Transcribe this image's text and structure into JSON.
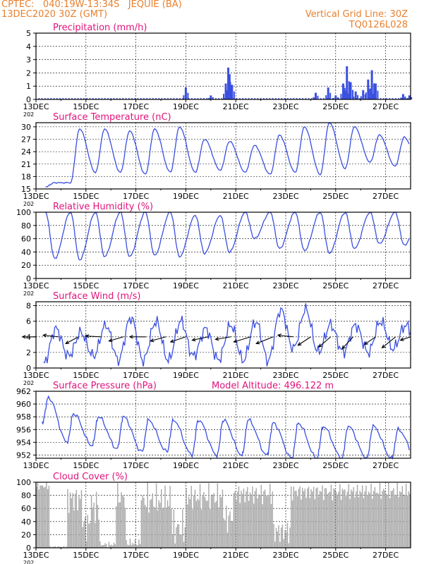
{
  "header": {
    "line1": "CPTEC:   040:19W-13:34S   JEQUIE (BA)",
    "line2": "13DEC2020 30Z (GMT)",
    "grid_note": "Vertical Grid Line: 30Z",
    "code": "TQ0126L028"
  },
  "colors": {
    "header": "#e8802e",
    "title": "#e0147c",
    "line": "#3a4fe0",
    "cloud": "#a8a8a8",
    "frame": "#000000"
  },
  "chart_data": [
    {
      "type": "bar",
      "title": "Precipitation (mm/h)",
      "x_ticks": [
        "13DEC",
        "15DEC",
        "17DEC",
        "19DEC",
        "21DEC",
        "23DEC",
        "25DEC",
        "27DEC"
      ],
      "x_start_sub": "202",
      "ylim": [
        0,
        5
      ],
      "y_ticks": [
        0,
        1,
        2,
        3,
        4,
        5
      ],
      "grid": true,
      "spikes": [
        {
          "day": 19.0,
          "v": 0.9
        },
        {
          "day": 20.0,
          "v": 0.3
        },
        {
          "day": 20.6,
          "v": 1.2
        },
        {
          "day": 20.7,
          "v": 2.4
        },
        {
          "day": 20.75,
          "v": 1.9
        },
        {
          "day": 20.85,
          "v": 1.1
        },
        {
          "day": 24.2,
          "v": 0.5
        },
        {
          "day": 24.7,
          "v": 0.9
        },
        {
          "day": 25.0,
          "v": 0.3
        },
        {
          "day": 25.3,
          "v": 1.2
        },
        {
          "day": 25.45,
          "v": 2.5
        },
        {
          "day": 25.6,
          "v": 1.3
        },
        {
          "day": 25.8,
          "v": 0.6
        },
        {
          "day": 26.1,
          "v": 0.7
        },
        {
          "day": 26.3,
          "v": 1.5
        },
        {
          "day": 26.45,
          "v": 2.2
        },
        {
          "day": 26.6,
          "v": 1.2
        },
        {
          "day": 27.7,
          "v": 0.4
        },
        {
          "day": 27.95,
          "v": 0.3
        }
      ]
    },
    {
      "type": "line",
      "title": "Surface Temperature (nC)",
      "x_ticks": [
        "13DEC",
        "15DEC",
        "17DEC",
        "19DEC",
        "21DEC",
        "23DEC",
        "25DEC",
        "27DEC"
      ],
      "x_start_sub": "202",
      "ylim": [
        15,
        31
      ],
      "y_ticks": [
        15,
        18,
        21,
        24,
        27,
        30
      ],
      "grid": true,
      "daily_max": [
        16.5,
        29.5,
        29.5,
        29,
        29.5,
        30,
        27,
        26.5,
        25.5,
        28,
        30,
        31,
        30,
        28,
        27.5,
        25,
        26.5
      ],
      "daily_min": [
        15.5,
        16.5,
        19,
        19,
        18.5,
        19,
        19,
        19.5,
        19,
        18.5,
        19,
        18.5,
        20,
        21.5,
        20.5,
        19.5,
        19.5
      ]
    },
    {
      "type": "line",
      "title": "Relative Humidity (%)",
      "x_ticks": [
        "13DEC",
        "15DEC",
        "17DEC",
        "19DEC",
        "21DEC",
        "23DEC",
        "25DEC",
        "27DEC"
      ],
      "x_start_sub": "202",
      "ylim": [
        0,
        100
      ],
      "y_ticks": [
        0,
        20,
        40,
        60,
        80,
        100
      ],
      "grid": true,
      "daily_min": [
        30,
        28,
        33,
        33,
        35,
        33,
        38,
        40,
        60,
        45,
        42,
        38,
        45,
        52,
        50,
        55,
        55
      ],
      "daily_max": [
        100,
        100,
        100,
        100,
        100,
        100,
        95,
        95,
        100,
        100,
        100,
        100,
        100,
        100,
        100,
        100,
        100
      ]
    },
    {
      "type": "line",
      "title": "Surface Wind (m/s)",
      "x_ticks": [
        "13DEC",
        "15DEC",
        "17DEC",
        "19DEC",
        "21DEC",
        "23DEC",
        "25DEC",
        "27DEC"
      ],
      "x_start_sub": "202",
      "ylim": [
        0,
        8.5
      ],
      "y_ticks": [
        0,
        2,
        4,
        6,
        8
      ],
      "grid": true,
      "daily_min": [
        0.5,
        1.5,
        1.5,
        1.0,
        1.0,
        1.0,
        1.5,
        1.0,
        1.0,
        1.0,
        2.5,
        2.0,
        2.0,
        2.0,
        2.5,
        3.0,
        3.0
      ],
      "daily_max": [
        5.0,
        4.5,
        5.5,
        6.5,
        6.0,
        6.0,
        5.0,
        5.5,
        6.0,
        7.5,
        7.5,
        5.5,
        5.5,
        6.0,
        5.5,
        5.5,
        5.0
      ],
      "arrows": [
        {
          "day": 13.0,
          "u": -1.6,
          "v": 0.0
        },
        {
          "day": 13.9,
          "u": -1.8,
          "v": 0.2
        },
        {
          "day": 14.7,
          "u": -1.5,
          "v": -0.8
        },
        {
          "day": 15.6,
          "u": -1.8,
          "v": 0.1
        },
        {
          "day": 16.5,
          "u": -1.7,
          "v": -0.5
        },
        {
          "day": 17.4,
          "u": -1.9,
          "v": 0.0
        },
        {
          "day": 18.2,
          "u": -1.8,
          "v": -0.5
        },
        {
          "day": 19.0,
          "u": -1.8,
          "v": -0.6
        },
        {
          "day": 19.9,
          "u": -1.9,
          "v": -0.4
        },
        {
          "day": 20.8,
          "u": -1.8,
          "v": -0.3
        },
        {
          "day": 21.6,
          "u": -2.0,
          "v": -0.6
        },
        {
          "day": 22.5,
          "u": -2.0,
          "v": -0.8
        },
        {
          "day": 23.3,
          "u": -1.8,
          "v": 0.2
        },
        {
          "day": 24.0,
          "u": -1.5,
          "v": -1.0
        },
        {
          "day": 24.8,
          "u": -1.4,
          "v": -1.2
        },
        {
          "day": 25.7,
          "u": -1.3,
          "v": -1.4
        },
        {
          "day": 26.6,
          "u": -1.3,
          "v": -0.9
        },
        {
          "day": 27.4,
          "u": -1.6,
          "v": -1.3
        },
        {
          "day": 28.0,
          "u": -1.2,
          "v": -0.4
        }
      ]
    },
    {
      "type": "line",
      "title": "Surface Pressure (hPa)",
      "subtitle": "Model Altitude: 496.122 m",
      "x_ticks": [
        "13DEC",
        "15DEC",
        "17DEC",
        "19DEC",
        "21DEC",
        "23DEC",
        "25DEC",
        "27DEC"
      ],
      "x_start_sub": "",
      "ylim": [
        951.5,
        962
      ],
      "y_ticks": [
        952,
        954,
        956,
        958,
        960,
        962
      ],
      "grid": true,
      "daily_max": [
        961,
        958.5,
        958,
        958,
        957.5,
        957.5,
        957.5,
        957.5,
        957.5,
        957,
        957,
        956.5,
        956.5,
        956.5,
        956,
        956,
        955.5
      ],
      "daily_min": [
        957,
        954,
        953.5,
        953,
        952.5,
        952.5,
        952,
        952,
        952,
        952,
        951.5,
        951.5,
        951.5,
        951.5,
        951.5,
        951.5,
        952
      ]
    },
    {
      "type": "bar",
      "title": "Cloud Cover (%)",
      "x_ticks": [
        "13DEC",
        "15DEC",
        "17DEC",
        "19DEC",
        "21DEC",
        "23DEC",
        "25DEC",
        "27DEC"
      ],
      "x_start_sub": "202",
      "ylim": [
        0,
        100
      ],
      "y_ticks": [
        0,
        20,
        40,
        60,
        80,
        100
      ],
      "grid": true,
      "segments": [
        {
          "from": 13.0,
          "to": 13.55,
          "lo": 88,
          "hi": 100
        },
        {
          "from": 13.55,
          "to": 14.25,
          "lo": 0,
          "hi": 3
        },
        {
          "from": 14.25,
          "to": 14.85,
          "lo": 50,
          "hi": 100
        },
        {
          "from": 14.85,
          "to": 15.15,
          "lo": 10,
          "hi": 60
        },
        {
          "from": 15.15,
          "to": 15.55,
          "lo": 30,
          "hi": 95
        },
        {
          "from": 15.55,
          "to": 16.2,
          "lo": 0,
          "hi": 10
        },
        {
          "from": 16.2,
          "to": 16.6,
          "lo": 55,
          "hi": 100
        },
        {
          "from": 16.6,
          "to": 17.2,
          "lo": 0,
          "hi": 15
        },
        {
          "from": 17.2,
          "to": 18.45,
          "lo": 45,
          "hi": 100
        },
        {
          "from": 18.45,
          "to": 19.0,
          "lo": 0,
          "hi": 60
        },
        {
          "from": 19.0,
          "to": 20.5,
          "lo": 55,
          "hi": 100
        },
        {
          "from": 20.5,
          "to": 20.9,
          "lo": 20,
          "hi": 70
        },
        {
          "from": 20.9,
          "to": 22.5,
          "lo": 65,
          "hi": 100
        },
        {
          "from": 22.5,
          "to": 23.2,
          "lo": 5,
          "hi": 45
        },
        {
          "from": 23.2,
          "to": 28.0,
          "lo": 72,
          "hi": 100
        }
      ]
    }
  ]
}
